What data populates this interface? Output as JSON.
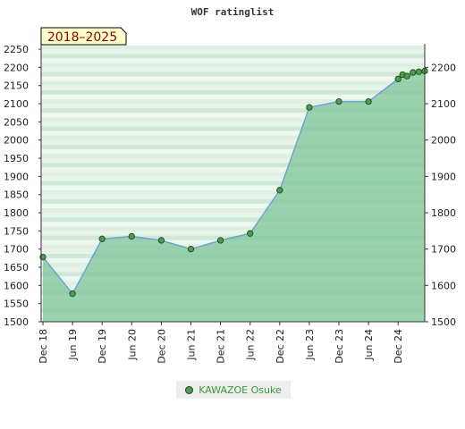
{
  "chart_data": {
    "type": "area",
    "title": "WOF ratinglist",
    "badge": "2018–2025",
    "y_ticks": [
      1500,
      1550,
      1600,
      1650,
      1700,
      1750,
      1800,
      1850,
      1900,
      1950,
      2000,
      2050,
      2100,
      2150,
      2200,
      2250
    ],
    "y_ticks_right": [
      1500,
      1600,
      1700,
      1800,
      1900,
      2000,
      2100,
      2200
    ],
    "ylim": [
      1500,
      2260
    ],
    "x_ticks": [
      "Dec 18",
      "Jun 19",
      "Dec 19",
      "Jun 20",
      "Dec 20",
      "Jun 21",
      "Dec 21",
      "Jun 22",
      "Dec 22",
      "Jun 23",
      "Dec 23",
      "Jun 24",
      "Dec 24"
    ],
    "xlim": [
      0,
      12.9
    ],
    "series": [
      {
        "name": "KAWAZOE Osuke",
        "x": [
          0,
          1,
          2,
          3,
          4,
          5,
          6,
          7,
          8,
          9,
          10,
          11,
          12.0,
          12.15,
          12.3,
          12.5,
          12.7,
          12.9
        ],
        "y": [
          1678,
          1577,
          1728,
          1735,
          1724,
          1700,
          1724,
          1743,
          1862,
          2090,
          2106,
          2106,
          2168,
          2180,
          2176,
          2186,
          2188,
          2190
        ]
      }
    ],
    "colors": {
      "line": "#6aa3d6",
      "fill": "#7dc496",
      "marker": "#4e9a4e",
      "marker_edge": "#1e4a1e",
      "badge_bg": "#ffffcc",
      "badge_text": "#8b0000"
    },
    "grid": true,
    "legend": "bottom-center"
  }
}
